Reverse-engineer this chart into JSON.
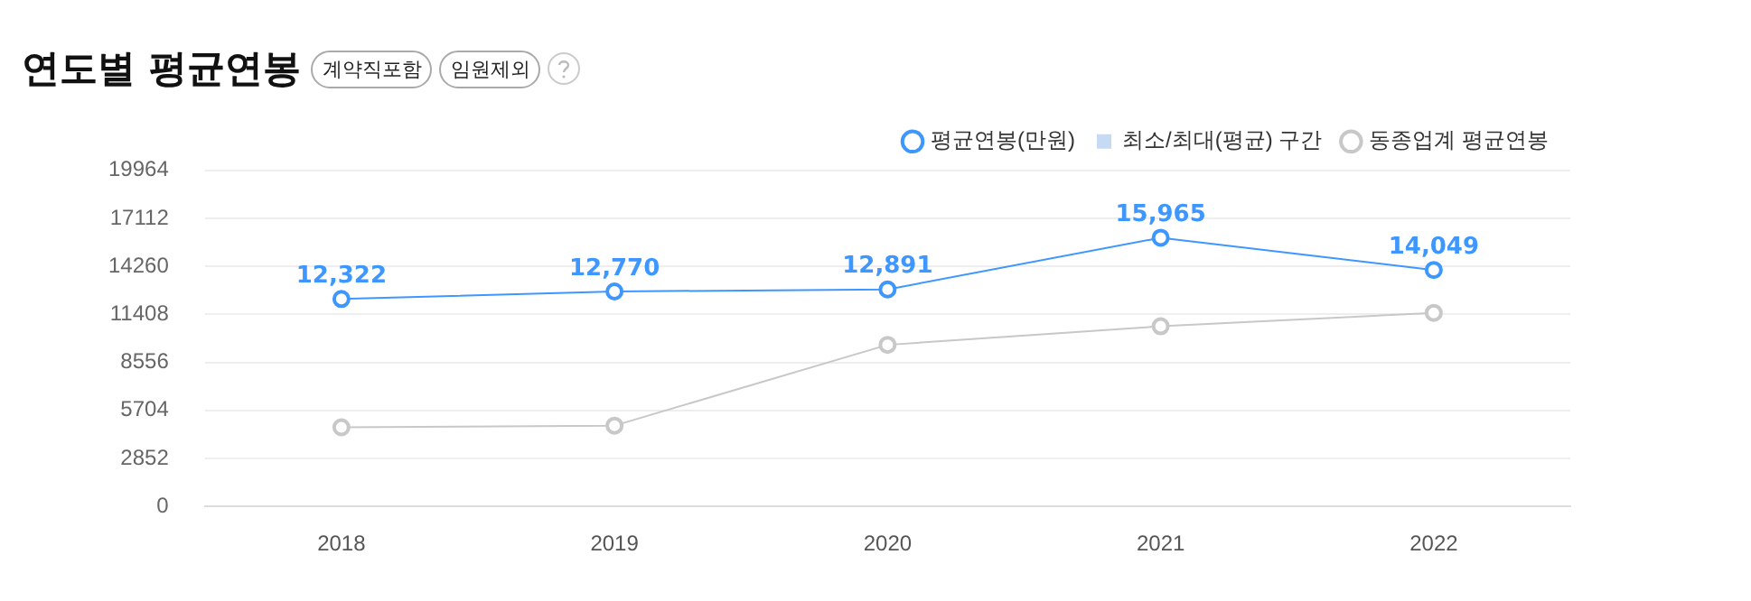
{
  "chart_data": {
    "type": "line",
    "title": "연도별 평균연봉",
    "annotations": [
      "계약직포함",
      "임원제외"
    ],
    "categories": [
      "2018",
      "2019",
      "2020",
      "2021",
      "2022"
    ],
    "series": [
      {
        "name": "평균연봉(만원)",
        "color": "#3e97ff",
        "values": [
          12322,
          12770,
          12891,
          15965,
          14049
        ],
        "value_labels": [
          "12,322",
          "12,770",
          "12,891",
          "15,965",
          "14,049"
        ]
      },
      {
        "name": "최소/최대(평균) 구간",
        "type": "bar",
        "color": "#c7daf5",
        "values": [
          null,
          null,
          null,
          null,
          null
        ]
      },
      {
        "name": "동종업계 평균연봉",
        "color": "#c8c8c8",
        "values": [
          4700,
          4800,
          9600,
          10700,
          11500
        ]
      }
    ],
    "ylim": [
      0,
      19964
    ],
    "yticks": [
      0,
      2852,
      5704,
      8556,
      11408,
      14260,
      17112,
      19964
    ],
    "grid": "y",
    "legend": "top right",
    "marker": "circle",
    "line_style": "solid"
  }
}
